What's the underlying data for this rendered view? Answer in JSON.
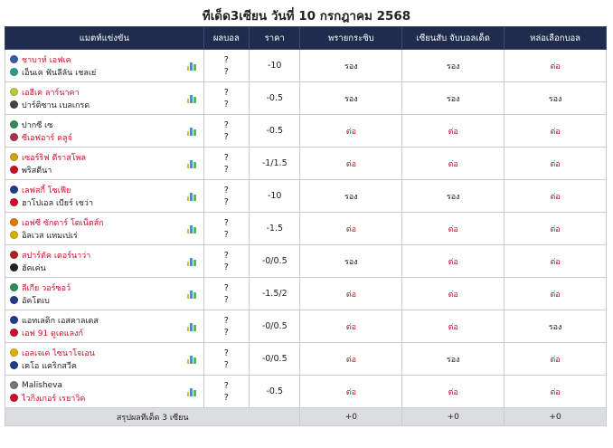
{
  "page": {
    "title": "ทีเด็ด3เซียน วันที่ 10 กรกฎาคม 2568"
  },
  "header": {
    "match": "แมตท์แข่งขัน",
    "score": "ผลบอล",
    "price": "ราคา",
    "pick1": "พรายกระซิบ",
    "pick2": "เซียนสับ จับบอลเด็ด",
    "pick3": "หล่อเลือกบอล"
  },
  "colors": {
    "header_bg": "#1f2c4d",
    "favorite_red": "#c8102e",
    "summary_bg": "#dcdde1"
  },
  "rows": [
    {
      "home": "ชาบาห์ เอฟเค",
      "away": "เอ็นเค ฟันลีลัน เชลเย่",
      "fav": "home",
      "home_score": "?",
      "away_score": "?",
      "price": "-10",
      "p1": "รอง",
      "p2": "รอง",
      "p3": "ต่อ",
      "home_logo": "#3b5ba9",
      "away_logo": "#2a9d8f"
    },
    {
      "home": "เอฮีเค ลาร์นาคา",
      "away": "ปาร์ติซาน เบลเกรด",
      "fav": "home",
      "home_score": "?",
      "away_score": "?",
      "price": "-0.5",
      "p1": "รอง",
      "p2": "รอง",
      "p3": "รอง",
      "home_logo": "#b8c93a",
      "away_logo": "#444444"
    },
    {
      "home": "ปากซี เซ",
      "away": "ซีเอฟอาร์ คลูจ์",
      "fav": "away",
      "home_score": "?",
      "away_score": "?",
      "price": "-0.5",
      "p1": "ต่อ",
      "p2": "ต่อ",
      "p3": "ต่อ",
      "home_logo": "#2e8b57",
      "away_logo": "#a8324a"
    },
    {
      "home": "เซอร์ริฟ ตีราสโพล",
      "away": "พริสตีนา",
      "fav": "home",
      "home_score": "?",
      "away_score": "?",
      "price": "-1/1.5",
      "p1": "ต่อ",
      "p2": "ต่อ",
      "p3": "ต่อ",
      "home_logo": "#d4a017",
      "away_logo": "#c8102e"
    },
    {
      "home": "เลฟสกี้ โซเฟีย",
      "away": "ฮาโปเอล เบียร์ เชว่า",
      "fav": "home",
      "home_score": "?",
      "away_score": "?",
      "price": "-10",
      "p1": "รอง",
      "p2": "รอง",
      "p3": "ต่อ",
      "home_logo": "#1f3d8a",
      "away_logo": "#c8102e"
    },
    {
      "home": "เอฟซี ซักตาร์ โดเน็ตส์ก",
      "away": "อิลเวส แทมเปเร่",
      "fav": "home",
      "home_score": "?",
      "away_score": "?",
      "price": "-1.5",
      "p1": "ต่อ",
      "p2": "ต่อ",
      "p3": "ต่อ",
      "home_logo": "#e07b00",
      "away_logo": "#d4b000"
    },
    {
      "home": "สปาร์ตัค เตอร์นาว่า",
      "away": "ฮัคเค่น",
      "fav": "home",
      "home_score": "?",
      "away_score": "?",
      "price": "-0/0.5",
      "p1": "รอง",
      "p2": "ต่อ",
      "p3": "ต่อ",
      "home_logo": "#b22222",
      "away_logo": "#222222"
    },
    {
      "home": "ลีเกีย วอร์ซอว์",
      "away": "อัคโตเบ",
      "fav": "home",
      "home_score": "?",
      "away_score": "?",
      "price": "-1.5/2",
      "p1": "ต่อ",
      "p2": "ต่อ",
      "p3": "ต่อ",
      "home_logo": "#2e8b57",
      "away_logo": "#1f3d8a"
    },
    {
      "home": "แอทเลติก เอสคาลเดส",
      "away": "เอฟ 91 ดูเดแลงก์",
      "fav": "away",
      "home_score": "?",
      "away_score": "?",
      "price": "-0/0.5",
      "p1": "ต่อ",
      "p2": "ต่อ",
      "p3": "รอง",
      "home_logo": "#1f3d8a",
      "away_logo": "#c8102e"
    },
    {
      "home": "เอลเจเค ไซนาโจเอน",
      "away": "เคโอ แคริกสวีค",
      "fav": "home",
      "home_score": "?",
      "away_score": "?",
      "price": "-0/0.5",
      "p1": "ต่อ",
      "p2": "รอง",
      "p3": "ต่อ",
      "home_logo": "#e0b000",
      "away_logo": "#1f3d8a"
    },
    {
      "home": "Malisheva",
      "away": "ไวกิงเกอร์ เรยาวิค",
      "fav": "away",
      "home_score": "?",
      "away_score": "?",
      "price": "-0.5",
      "p1": "ต่อ",
      "p2": "ต่อ",
      "p3": "ต่อ",
      "home_logo": "#777777",
      "away_logo": "#c8102e"
    }
  ],
  "summary": {
    "label": "สรุปผลทีเด็ด 3 เซียน",
    "p1": "+0",
    "p2": "+0",
    "p3": "+0"
  }
}
